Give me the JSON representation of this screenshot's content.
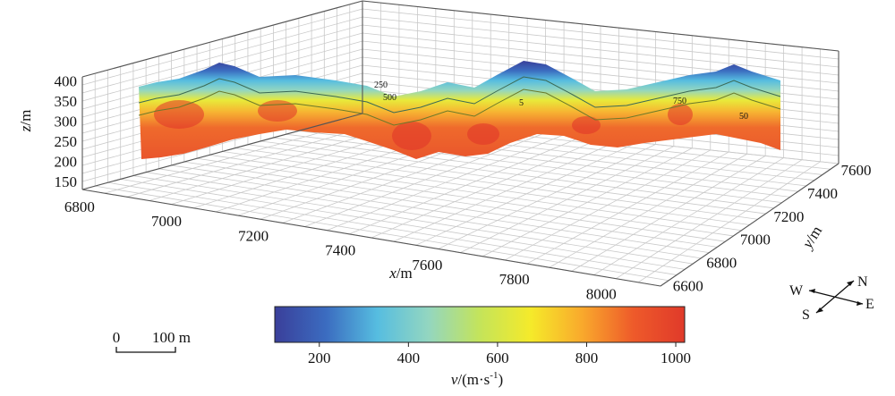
{
  "chart_data": {
    "type": "heatmap",
    "variable": "v",
    "units": "m·s⁻¹",
    "colorbar": {
      "ticks": [
        200,
        400,
        600,
        800,
        1000
      ],
      "range": [
        100,
        1020
      ],
      "label_var": "v",
      "label_units": "/(m·s",
      "label_exp": "-1",
      "label_close": ")",
      "stops": [
        "#3a3f9a",
        "#3b6cc0",
        "#56bde0",
        "#93d6c0",
        "#c4e45a",
        "#f5ea2a",
        "#f9a92c",
        "#ee5a2a",
        "#e03a2a"
      ]
    },
    "axes": {
      "z": {
        "var": "z",
        "unit": "/m",
        "ticks": [
          150,
          200,
          250,
          300,
          350,
          400
        ],
        "range": [
          130,
          410
        ]
      },
      "x": {
        "var": "x",
        "unit": "/m",
        "ticks": [
          6800,
          7000,
          7200,
          7400,
          7600,
          7800,
          8000
        ],
        "range": [
          6790,
          8120
        ]
      },
      "y": {
        "var": "y",
        "unit": "/m",
        "ticks": [
          6600,
          6800,
          7000,
          7200,
          7400,
          7600
        ],
        "range": [
          6580,
          7640
        ]
      }
    },
    "grid": true,
    "contour_labels": [
      "250",
      "500",
      "5",
      "750",
      "50"
    ],
    "profile": {
      "surface_x": [
        7000,
        7080,
        7160,
        7240,
        7320,
        7400,
        7480,
        7560,
        7640,
        7720,
        7800,
        7880,
        7960,
        8040,
        8100
      ],
      "note_values": "values are approximate readings of the profile shape"
    }
  },
  "compass": {
    "n": "N",
    "e": "E",
    "s": "S",
    "w": "W"
  },
  "scalebar": {
    "zero": "0",
    "label": "100 m"
  }
}
